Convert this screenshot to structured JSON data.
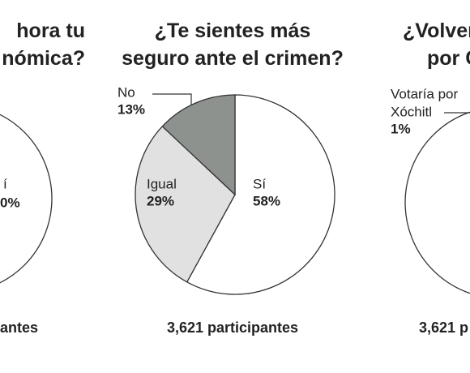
{
  "chart_data": [
    {
      "type": "pie",
      "title_lines": [
        "hora tu",
        "nómica?"
      ],
      "annotations": [
        "í",
        "0%"
      ],
      "footer": "antes"
    },
    {
      "type": "pie",
      "title_lines": [
        "¿Te sientes más",
        "seguro ante el crimen?"
      ],
      "categories": [
        "Sí",
        "Igual",
        "No"
      ],
      "values": [
        58,
        29,
        13
      ],
      "value_labels": [
        "58%",
        "29%",
        "13%"
      ],
      "colors": [
        "#ffffff",
        "#e1e1e1",
        "#8e928f"
      ],
      "footer": "3,621 participantes"
    },
    {
      "type": "pie",
      "title_lines": [
        "¿Volver",
        "por C"
      ],
      "categories": [
        [
          "Votaría por",
          "Xóchitl"
        ]
      ],
      "values": [
        1
      ],
      "value_labels": [
        "1%"
      ],
      "colors": [
        "#8e928f"
      ],
      "footer": "3,621 p"
    }
  ]
}
